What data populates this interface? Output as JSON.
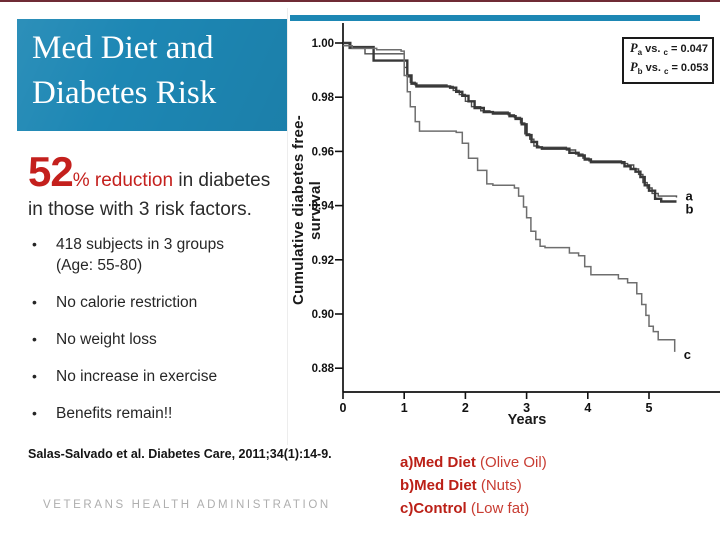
{
  "slide": {
    "title": "Med Diet and Diabetes Risk",
    "headline": {
      "number": "52",
      "red_suffix": "% reduction",
      "dark_suffix": " in diabetes",
      "line2": "in those with 3 risk factors."
    },
    "bullets": {
      "marker": "•",
      "items": [
        "418 subjects in 3 groups (Age: 55-80)",
        "No calorie restriction",
        "No weight loss",
        "No increase in exercise",
        "Benefits remain!!"
      ]
    },
    "citation": "Salas-Salvado et al. Diabetes Care, 2011;34(1):14-9.",
    "footer": "VETERANS HEALTH ADMINISTRATION",
    "legend": {
      "items": [
        {
          "prefix": "a)",
          "name": "Med Diet ",
          "detail": "(Olive Oil)"
        },
        {
          "prefix": "b)",
          "name": "Med Diet ",
          "detail": "(Nuts)"
        },
        {
          "prefix": "c)",
          "name": "Control ",
          "detail": "(Low fat)"
        }
      ]
    },
    "colors": {
      "accent_blue": "#1d87b4",
      "top_border_maroon": "#6f2b35",
      "highlight_red": "#c4201d",
      "legend_red": "#bb2017",
      "text_dark": "#2b2b2b",
      "footer_gray": "#aeaeae"
    }
  },
  "chart_data": {
    "type": "line",
    "subtype": "kaplan-meier-step",
    "title": "",
    "ylabel": "Cumulative diabetes free-survival",
    "xlabel": "Years",
    "xlim": [
      0,
      5.6
    ],
    "ylim": [
      0.87,
      1.005
    ],
    "grid": false,
    "x_tick_labels": [
      "0",
      "1",
      "2",
      "3",
      "4",
      "5"
    ],
    "y_tick_labels": [
      "1.00",
      "0.98",
      "0.96",
      "0.94",
      "0.92",
      "0.90",
      "0.88"
    ],
    "annotation_box": {
      "lines": [
        {
          "p": "P",
          "sub1": "a",
          "mid": " vs. ",
          "sub2": "c",
          "value": " = 0.047"
        },
        {
          "p": "P",
          "sub1": "b",
          "mid": " vs. ",
          "sub2": "c",
          "value": " = 0.053"
        }
      ]
    },
    "series": [
      {
        "name": "Med Diet (Olive Oil)",
        "label": "a",
        "color": "#4d4d4d",
        "width": 1.4,
        "label_dy": 0,
        "points": [
          [
            0,
            1.0
          ],
          [
            0.1,
            0.998
          ],
          [
            0.36,
            0.996
          ],
          [
            0.95,
            0.996
          ],
          [
            1.0,
            0.991
          ],
          [
            1.05,
            0.9875
          ],
          [
            1.1,
            0.9855
          ],
          [
            1.18,
            0.9845
          ],
          [
            1.7,
            0.984
          ],
          [
            1.8,
            0.9825
          ],
          [
            1.9,
            0.981
          ],
          [
            2.0,
            0.9785
          ],
          [
            2.1,
            0.9765
          ],
          [
            2.25,
            0.975
          ],
          [
            2.4,
            0.9745
          ],
          [
            2.7,
            0.9735
          ],
          [
            2.8,
            0.9725
          ],
          [
            2.9,
            0.9705
          ],
          [
            2.97,
            0.9665
          ],
          [
            3.05,
            0.9645
          ],
          [
            3.12,
            0.962
          ],
          [
            3.2,
            0.9615
          ],
          [
            3.65,
            0.9605
          ],
          [
            3.8,
            0.959
          ],
          [
            3.92,
            0.9575
          ],
          [
            4.02,
            0.9565
          ],
          [
            4.55,
            0.9555
          ],
          [
            4.65,
            0.955
          ],
          [
            4.75,
            0.9535
          ],
          [
            4.83,
            0.9515
          ],
          [
            4.9,
            0.9485
          ],
          [
            4.97,
            0.9465
          ],
          [
            5.05,
            0.9445
          ],
          [
            5.15,
            0.9435
          ],
          [
            5.45,
            0.943
          ]
        ]
      },
      {
        "name": "Med Diet (Nuts)",
        "label": "b",
        "color": "#383838",
        "width": 2.4,
        "label_dy": 9,
        "points": [
          [
            0,
            1.0
          ],
          [
            0.12,
            0.9985
          ],
          [
            0.5,
            0.9935
          ],
          [
            0.98,
            0.9935
          ],
          [
            1.05,
            0.988
          ],
          [
            1.12,
            0.985
          ],
          [
            1.2,
            0.984
          ],
          [
            1.75,
            0.9835
          ],
          [
            1.85,
            0.982
          ],
          [
            1.95,
            0.9805
          ],
          [
            2.05,
            0.9785
          ],
          [
            2.15,
            0.976
          ],
          [
            2.3,
            0.9745
          ],
          [
            2.45,
            0.974
          ],
          [
            2.72,
            0.973
          ],
          [
            2.82,
            0.972
          ],
          [
            2.92,
            0.97
          ],
          [
            3.0,
            0.966
          ],
          [
            3.08,
            0.9635
          ],
          [
            3.17,
            0.9615
          ],
          [
            3.25,
            0.961
          ],
          [
            3.7,
            0.9595
          ],
          [
            3.85,
            0.9585
          ],
          [
            3.95,
            0.957
          ],
          [
            4.05,
            0.956
          ],
          [
            4.6,
            0.9545
          ],
          [
            4.7,
            0.9535
          ],
          [
            4.78,
            0.9525
          ],
          [
            4.86,
            0.9505
          ],
          [
            4.93,
            0.9475
          ],
          [
            5.0,
            0.9455
          ],
          [
            5.1,
            0.9425
          ],
          [
            5.2,
            0.9415
          ],
          [
            5.45,
            0.9415
          ]
        ]
      },
      {
        "name": "Control (Low fat)",
        "label": "c",
        "color": "#6e6e6e",
        "width": 1.5,
        "label_dy": 4,
        "points": [
          [
            0,
            0.999
          ],
          [
            0.15,
            0.998
          ],
          [
            0.55,
            0.9975
          ],
          [
            0.95,
            0.997
          ],
          [
            1.0,
            0.988
          ],
          [
            1.05,
            0.982
          ],
          [
            1.1,
            0.9765
          ],
          [
            1.18,
            0.971
          ],
          [
            1.25,
            0.9675
          ],
          [
            1.85,
            0.967
          ],
          [
            1.95,
            0.963
          ],
          [
            2.05,
            0.9575
          ],
          [
            2.2,
            0.953
          ],
          [
            2.35,
            0.948
          ],
          [
            2.45,
            0.9475
          ],
          [
            2.8,
            0.9465
          ],
          [
            2.87,
            0.9435
          ],
          [
            2.95,
            0.9395
          ],
          [
            3.0,
            0.9355
          ],
          [
            3.07,
            0.9305
          ],
          [
            3.15,
            0.9275
          ],
          [
            3.22,
            0.925
          ],
          [
            3.3,
            0.9245
          ],
          [
            3.7,
            0.9225
          ],
          [
            3.85,
            0.9215
          ],
          [
            3.95,
            0.9175
          ],
          [
            4.05,
            0.9145
          ],
          [
            4.5,
            0.913
          ],
          [
            4.65,
            0.9115
          ],
          [
            4.8,
            0.9075
          ],
          [
            4.88,
            0.9035
          ],
          [
            4.95,
            0.8995
          ],
          [
            5.0,
            0.8955
          ],
          [
            5.07,
            0.8935
          ],
          [
            5.15,
            0.8905
          ],
          [
            5.42,
            0.8895
          ],
          [
            5.42,
            0.886
          ]
        ]
      }
    ]
  }
}
